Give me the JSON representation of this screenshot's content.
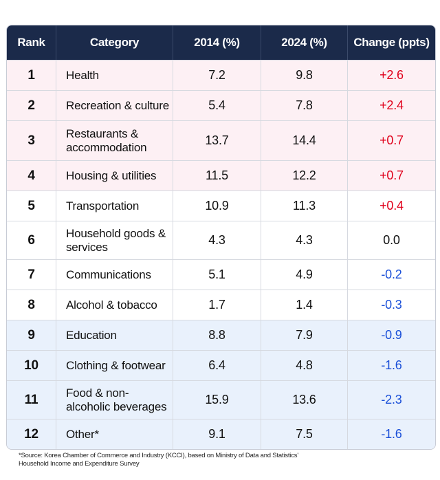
{
  "chart_data": {
    "type": "table",
    "columns": [
      "Rank",
      "Category",
      "2014 (%)",
      "2024 (%)",
      "Change (ppts)"
    ],
    "rows": [
      {
        "rank": "1",
        "category": "Health",
        "y2014": "7.2",
        "y2024": "9.8",
        "change": "+2.6"
      },
      {
        "rank": "2",
        "category": "Recreation & culture",
        "y2014": "5.4",
        "y2024": "7.8",
        "change": "+2.4"
      },
      {
        "rank": "3",
        "category": "Restaurants & accommodation",
        "y2014": "13.7",
        "y2024": "14.4",
        "change": "+0.7"
      },
      {
        "rank": "4",
        "category": "Housing & utilities",
        "y2014": "11.5",
        "y2024": "12.2",
        "change": "+0.7"
      },
      {
        "rank": "5",
        "category": "Transportation",
        "y2014": "10.9",
        "y2024": "11.3",
        "change": "+0.4"
      },
      {
        "rank": "6",
        "category": "Household goods & services",
        "y2014": "4.3",
        "y2024": "4.3",
        "change": "0.0"
      },
      {
        "rank": "7",
        "category": "Communications",
        "y2014": "5.1",
        "y2024": "4.9",
        "change": "-0.2"
      },
      {
        "rank": "8",
        "category": "Alcohol & tobacco",
        "y2014": "1.7",
        "y2024": "1.4",
        "change": "-0.3"
      },
      {
        "rank": "9",
        "category": "Education",
        "y2014": "8.8",
        "y2024": "7.9",
        "change": "-0.9"
      },
      {
        "rank": "10",
        "category": "Clothing & footwear",
        "y2014": "6.4",
        "y2024": "4.8",
        "change": "-1.6"
      },
      {
        "rank": "11",
        "category": "Food & non-alcoholic beverages",
        "y2014": "15.9",
        "y2024": "13.6",
        "change": "-2.3"
      },
      {
        "rank": "12",
        "category": "Other*",
        "y2014": "9.1",
        "y2024": "7.5",
        "change": "-1.6"
      }
    ],
    "row_shading": [
      "pink",
      "pink",
      "pink",
      "pink",
      "white",
      "white",
      "white",
      "white",
      "blue",
      "blue",
      "blue",
      "blue"
    ],
    "colors": {
      "header": "#1b2a4a",
      "pink": "#fdf0f4",
      "blue": "#e9f1fc",
      "positive": "#e0001b",
      "negative": "#1a4fd8"
    }
  },
  "footnote": {
    "line1": "*Source: Korea Chamber of Commerce and Industry (KCCI), based on Ministry of Data and Statistics'",
    "line2": "Household Income and Expenditure Survey"
  }
}
